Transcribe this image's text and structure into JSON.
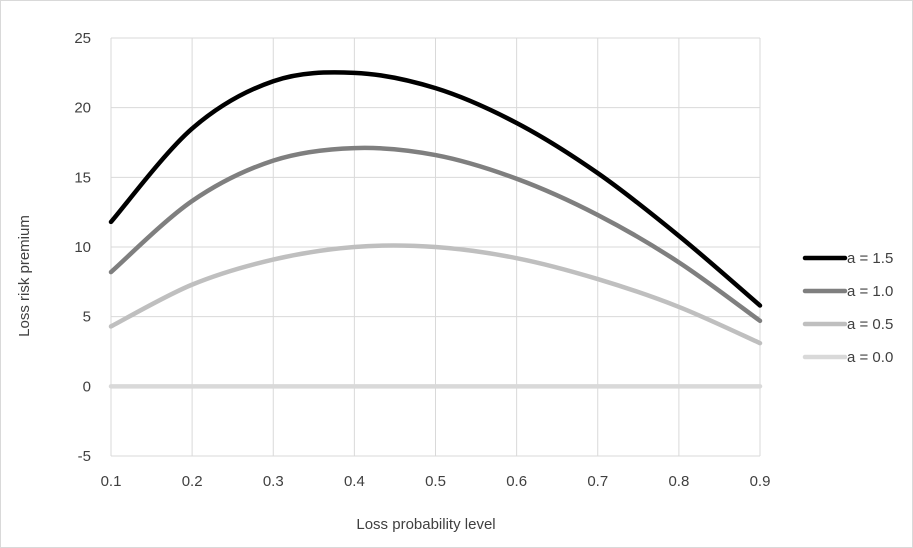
{
  "chart_data": {
    "type": "line",
    "title": "",
    "xlabel": "Loss probability level",
    "ylabel": "Loss risk premium",
    "xlim": [
      0.1,
      0.9
    ],
    "ylim": [
      -5,
      25
    ],
    "x_ticks": [
      "0.1",
      "0.2",
      "0.3",
      "0.4",
      "0.5",
      "0.6",
      "0.7",
      "0.8",
      "0.9"
    ],
    "y_ticks": [
      "-5",
      "0",
      "5",
      "10",
      "15",
      "20",
      "25"
    ],
    "grid": "vertical and horizontal",
    "legend_position": "right",
    "x": [
      0.1,
      0.2,
      0.3,
      0.4,
      0.5,
      0.6,
      0.7,
      0.8,
      0.9
    ],
    "series": [
      {
        "name": "a = 1.5",
        "color": "#000000",
        "values": [
          11.8,
          18.5,
          21.9,
          22.5,
          21.4,
          18.9,
          15.3,
          10.8,
          5.8
        ]
      },
      {
        "name": "a = 1.0",
        "color": "#7f7f7f",
        "values": [
          8.2,
          13.3,
          16.2,
          17.1,
          16.6,
          14.9,
          12.3,
          8.9,
          4.7
        ]
      },
      {
        "name": "a = 0.5",
        "color": "#bfbfbf",
        "values": [
          4.3,
          7.3,
          9.1,
          10.0,
          10.0,
          9.2,
          7.7,
          5.7,
          3.1
        ]
      },
      {
        "name": "a = 0.0",
        "color": "#d9d9d9",
        "values": [
          0,
          0,
          0,
          0,
          0,
          0,
          0,
          0,
          0
        ]
      }
    ]
  }
}
